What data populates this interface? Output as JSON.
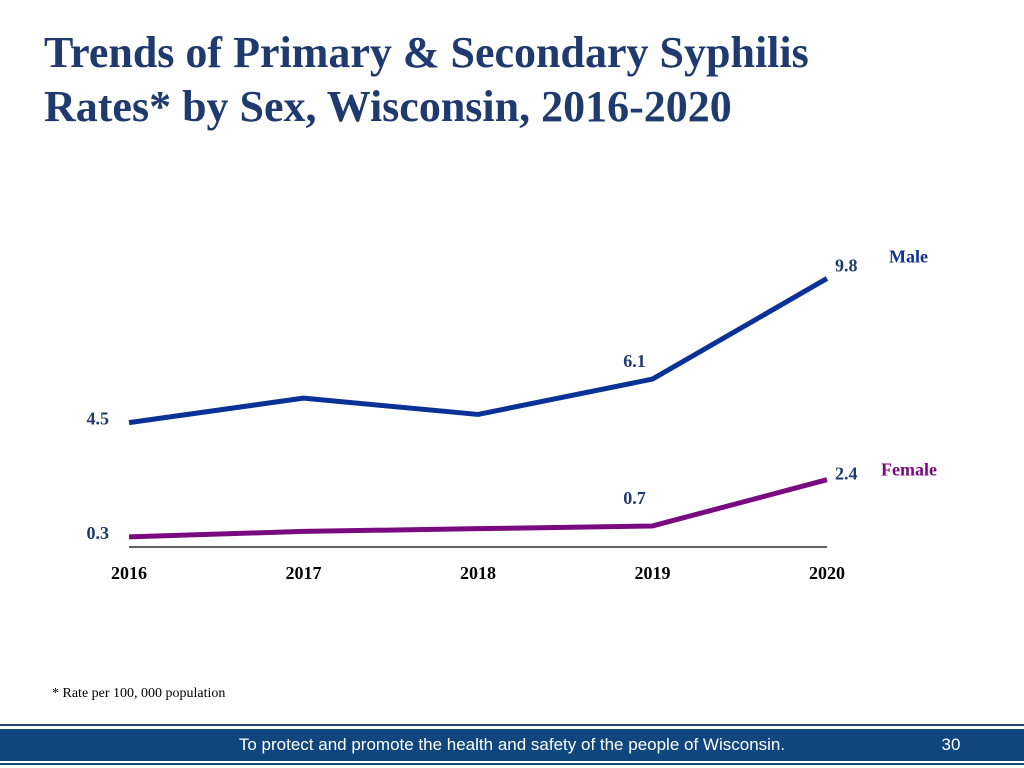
{
  "slide": {
    "title_line1": "Trends of Primary & Secondary Syphilis",
    "title_line2": "Rates* by Sex, Wisconsin, 2016-2020",
    "footnote": "* Rate per 100, 000 population",
    "footer_text": "To protect and promote the health and safety of the people of Wisconsin.",
    "page_number": "30"
  },
  "chart_data": {
    "type": "line",
    "title": "Trends of Primary & Secondary Syphilis Rates* by Sex, Wisconsin, 2016-2020",
    "xlabel": "",
    "ylabel": "",
    "categories": [
      "2016",
      "2017",
      "2018",
      "2019",
      "2020"
    ],
    "ylim": [
      0,
      10
    ],
    "grid": false,
    "series": [
      {
        "name": "Male",
        "color": "#0a3296",
        "values": [
          4.5,
          5.4,
          4.8,
          6.1,
          9.8
        ],
        "labels": [
          "4.5",
          "",
          "",
          "6.1",
          "9.8"
        ]
      },
      {
        "name": "Female",
        "color": "#7a0a80",
        "values": [
          0.3,
          0.5,
          0.6,
          0.7,
          2.4
        ],
        "labels": [
          "0.3",
          "",
          "",
          "0.7",
          "2.4"
        ]
      }
    ],
    "label_color": "#1f3a6e"
  }
}
